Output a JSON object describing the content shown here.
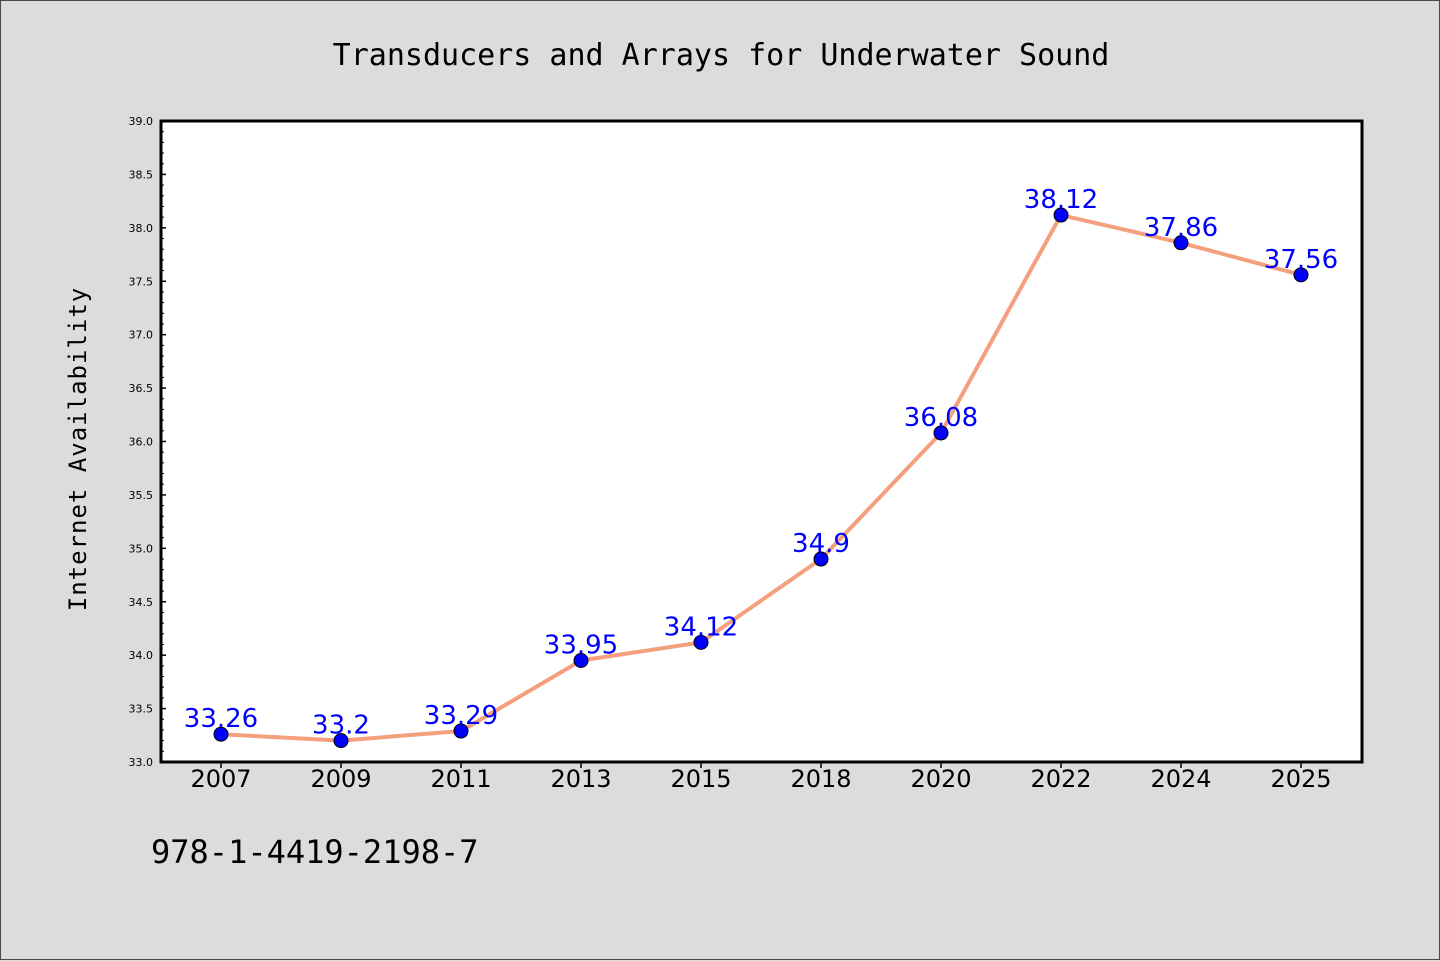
{
  "chart_data": {
    "type": "line",
    "title": "Transducers and Arrays for Underwater Sound",
    "xlabel": "",
    "ylabel": "Internet Availability",
    "categories": [
      "2007",
      "2009",
      "2011",
      "2013",
      "2015",
      "2018",
      "2020",
      "2022",
      "2024",
      "2025"
    ],
    "values": [
      33.26,
      33.2,
      33.29,
      33.95,
      34.12,
      34.9,
      36.08,
      38.12,
      37.86,
      37.56
    ],
    "data_labels": [
      "33.26",
      "33.2",
      "33.29",
      "33.95",
      "34.12",
      "34.9",
      "36.08",
      "38.12",
      "37.86",
      "37.56"
    ],
    "ylim": [
      33.0,
      39.0
    ],
    "yticks": [
      "33.0",
      "33.5",
      "34.0",
      "34.5",
      "35.0",
      "35.5",
      "36.0",
      "36.5",
      "37.0",
      "37.5",
      "38.0",
      "38.5",
      "39.0"
    ],
    "grid": false,
    "legend": "none",
    "colors": {
      "line": "#f4a07e",
      "marker": "#0000ff",
      "data_label": "#0000ff",
      "background": "#dcdcdc",
      "plot_area": "#ffffff"
    }
  },
  "footer": {
    "isbn": "978-1-4419-2198-7"
  }
}
